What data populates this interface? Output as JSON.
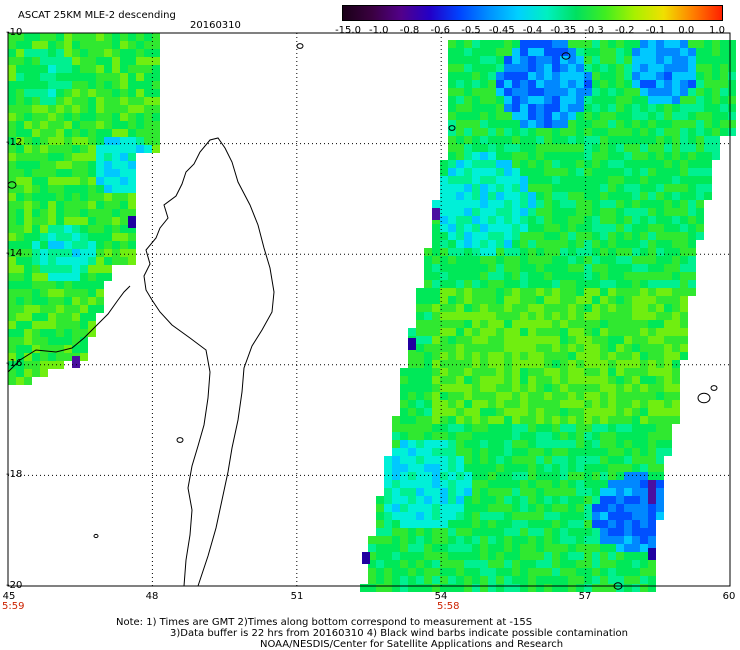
{
  "header": {
    "title": "ASCAT 25KM MLE-2 descending",
    "date": "20160310"
  },
  "colorbar": {
    "labels": [
      "-15.0",
      "-1.0",
      "-0.8",
      "-0.6",
      "-0.5",
      "-0.45",
      "-0.4",
      "-0.35",
      "-0.3",
      "-0.2",
      "-0.1",
      "0.0",
      "1.0"
    ],
    "colors": [
      "#1a0018",
      "#3a0040",
      "#52008a",
      "#2200c8",
      "#0044ff",
      "#0090ff",
      "#00d0ff",
      "#00f0c0",
      "#00e060",
      "#40ee20",
      "#a8f000",
      "#f0e000",
      "#ff8000",
      "#ff2000"
    ]
  },
  "axes": {
    "lat_labels": [
      "-10",
      "-12",
      "-14",
      "-16",
      "-18",
      "-20"
    ],
    "lon_labels": [
      "45",
      "48",
      "51",
      "54",
      "57",
      "60"
    ]
  },
  "times": {
    "left": "5:59",
    "mid": "5:58"
  },
  "footer": {
    "line1": "Note: 1) Times are GMT 2)Times along bottom correspond to measurement at -15S",
    "line2": "3)Data buffer is 22 hrs from 20160310 4) Black wind barbs indicate possible contamination",
    "line3": "NOAA/NESDIS/Center for Satellite Applications and Research"
  }
}
